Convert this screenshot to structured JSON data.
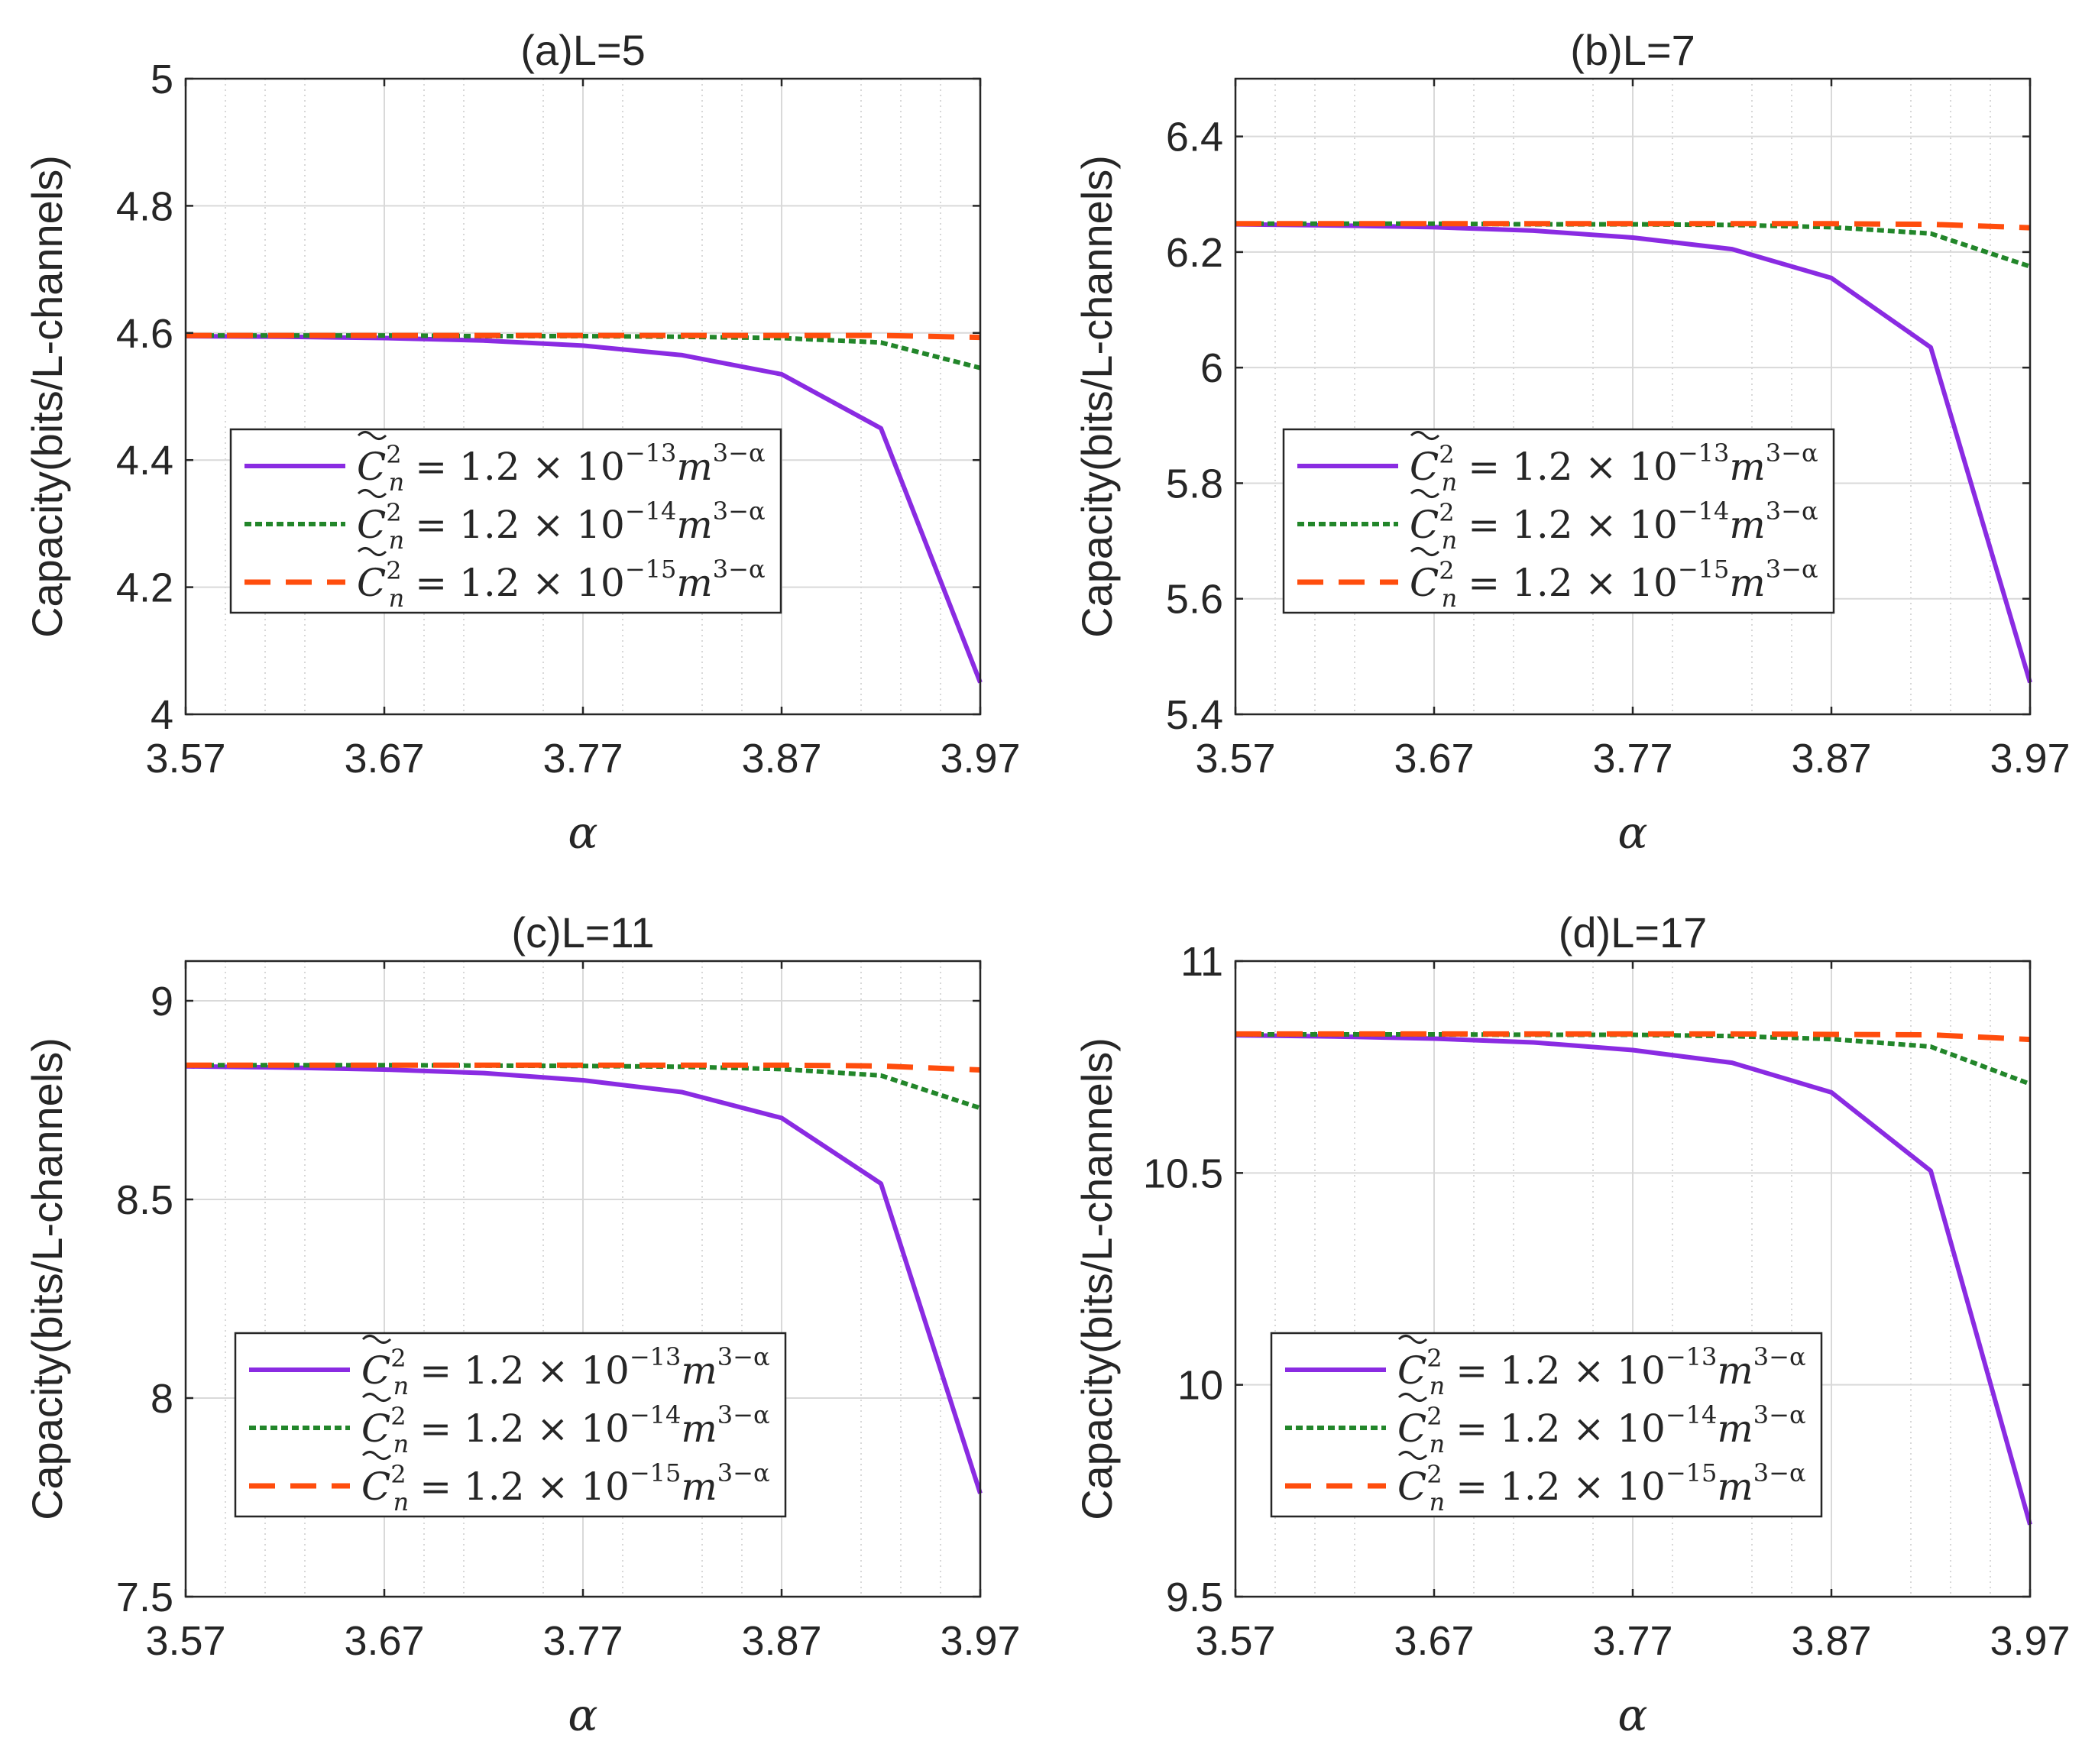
{
  "chart_data": [
    {
      "type": "line",
      "title": "(a)L=5",
      "xlabel": "α",
      "ylabel": "Capacity(bits/L-channels)",
      "xlim": [
        3.57,
        3.97
      ],
      "ylim": [
        4,
        5
      ],
      "xticks": [
        "3.57",
        "3.67",
        "3.77",
        "3.87",
        "3.97"
      ],
      "yticks": [
        "4",
        "4.2",
        "4.4",
        "4.6",
        "4.8",
        "5"
      ],
      "x": [
        3.57,
        3.62,
        3.67,
        3.72,
        3.77,
        3.82,
        3.87,
        3.92,
        3.97
      ],
      "series": [
        {
          "name": "C̃n² = 1.2 × 10⁻¹³ m³⁻α",
          "values": [
            4.595,
            4.594,
            4.592,
            4.588,
            4.58,
            4.565,
            4.535,
            4.45,
            4.05
          ]
        },
        {
          "name": "C̃n² = 1.2 × 10⁻¹⁴ m³⁻α",
          "values": [
            4.596,
            4.596,
            4.596,
            4.595,
            4.595,
            4.594,
            4.592,
            4.585,
            4.545
          ]
        },
        {
          "name": "C̃n² = 1.2 × 10⁻¹⁵ m³⁻α",
          "values": [
            4.596,
            4.596,
            4.596,
            4.596,
            4.596,
            4.596,
            4.596,
            4.596,
            4.593
          ]
        }
      ],
      "grid": true,
      "legend": "center-left"
    },
    {
      "type": "line",
      "title": "(b)L=7",
      "xlabel": "α",
      "ylabel": "Capacity(bits/L-channels)",
      "xlim": [
        3.57,
        3.97
      ],
      "ylim": [
        5.4,
        6.5
      ],
      "xticks": [
        "3.57",
        "3.67",
        "3.77",
        "3.87",
        "3.97"
      ],
      "yticks": [
        "5.4",
        "5.6",
        "5.8",
        "6",
        "6.2",
        "6.4"
      ],
      "x": [
        3.57,
        3.62,
        3.67,
        3.72,
        3.77,
        3.82,
        3.87,
        3.92,
        3.97
      ],
      "series": [
        {
          "name": "C̃n² = 1.2 × 10⁻¹³ m³⁻α",
          "values": [
            6.248,
            6.246,
            6.243,
            6.237,
            6.225,
            6.205,
            6.155,
            6.035,
            5.455
          ]
        },
        {
          "name": "C̃n² = 1.2 × 10⁻¹⁴ m³⁻α",
          "values": [
            6.249,
            6.249,
            6.249,
            6.248,
            6.248,
            6.247,
            6.243,
            6.232,
            6.175
          ]
        },
        {
          "name": "C̃n² = 1.2 × 10⁻¹⁵ m³⁻α",
          "values": [
            6.249,
            6.249,
            6.249,
            6.249,
            6.249,
            6.249,
            6.249,
            6.248,
            6.242
          ]
        }
      ],
      "grid": true,
      "legend": "center-left"
    },
    {
      "type": "line",
      "title": "(c)L=11",
      "xlabel": "α",
      "ylabel": "Capacity(bits/L-channels)",
      "xlim": [
        3.57,
        3.97
      ],
      "ylim": [
        7.5,
        9.1
      ],
      "xticks": [
        "3.57",
        "3.67",
        "3.77",
        "3.87",
        "3.97"
      ],
      "yticks": [
        "7.5",
        "8",
        "8.5",
        "9"
      ],
      "x": [
        3.57,
        3.62,
        3.67,
        3.72,
        3.77,
        3.82,
        3.87,
        3.92,
        3.97
      ],
      "series": [
        {
          "name": "C̃n² = 1.2 × 10⁻¹³ m³⁻α",
          "values": [
            8.835,
            8.832,
            8.827,
            8.818,
            8.8,
            8.77,
            8.705,
            8.54,
            7.76
          ]
        },
        {
          "name": "C̃n² = 1.2 × 10⁻¹⁴ m³⁻α",
          "values": [
            8.838,
            8.838,
            8.838,
            8.837,
            8.836,
            8.834,
            8.828,
            8.812,
            8.73
          ]
        },
        {
          "name": "C̃n² = 1.2 × 10⁻¹⁵ m³⁻α",
          "values": [
            8.838,
            8.838,
            8.838,
            8.838,
            8.838,
            8.838,
            8.838,
            8.836,
            8.826
          ]
        }
      ],
      "grid": true,
      "legend": "bottom-left"
    },
    {
      "type": "line",
      "title": "(d)L=17",
      "xlabel": "α",
      "ylabel": "Capacity(bits/L-channels)",
      "xlim": [
        3.57,
        3.97
      ],
      "ylim": [
        9.5,
        11
      ],
      "xticks": [
        "3.57",
        "3.67",
        "3.77",
        "3.87",
        "3.97"
      ],
      "yticks": [
        "9.5",
        "10",
        "10.5",
        "11"
      ],
      "x": [
        3.57,
        3.62,
        3.67,
        3.72,
        3.77,
        3.82,
        3.87,
        3.92,
        3.97
      ],
      "series": [
        {
          "name": "C̃n² = 1.2 × 10⁻¹³ m³⁻α",
          "values": [
            10.825,
            10.822,
            10.817,
            10.808,
            10.79,
            10.76,
            10.69,
            10.505,
            9.67
          ]
        },
        {
          "name": "C̃n² = 1.2 × 10⁻¹⁴ m³⁻α",
          "values": [
            10.827,
            10.827,
            10.827,
            10.826,
            10.826,
            10.823,
            10.816,
            10.798,
            10.71
          ]
        },
        {
          "name": "C̃n² = 1.2 × 10⁻¹⁵ m³⁻α",
          "values": [
            10.828,
            10.828,
            10.828,
            10.828,
            10.828,
            10.828,
            10.827,
            10.826,
            10.815
          ]
        }
      ],
      "grid": true,
      "legend": "bottom-left"
    }
  ],
  "colors": {
    "series": [
      "#8a2be2",
      "#22862a",
      "#ff4d0d"
    ],
    "grid_major": "#d9d9d9",
    "grid_minor": "#cccccc",
    "axis": "#262626"
  },
  "legend_labels": {
    "prefix": "= 1.2 × 10",
    "exponents": [
      "−13",
      "−14",
      "−15"
    ],
    "m_exponent": "3−α"
  }
}
